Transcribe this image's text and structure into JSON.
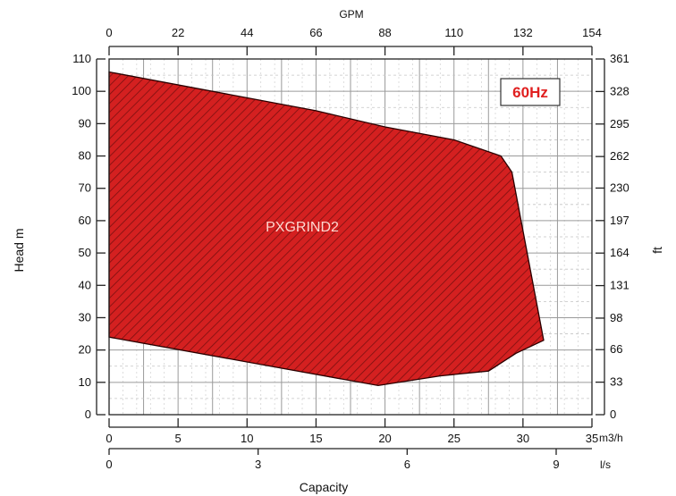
{
  "chart_data": {
    "type": "area",
    "region": {
      "name": "PXGRIND2",
      "color": "#d42020",
      "outline_color": "#2a0000",
      "hatch_color": "#7a1010",
      "points": [
        {
          "x": 0,
          "y": 106
        },
        {
          "x": 15,
          "y": 94
        },
        {
          "x": 20,
          "y": 89
        },
        {
          "x": 25,
          "y": 85
        },
        {
          "x": 28.4,
          "y": 80
        },
        {
          "x": 29.2,
          "y": 75
        },
        {
          "x": 31.5,
          "y": 23
        },
        {
          "x": 29.5,
          "y": 19
        },
        {
          "x": 27.5,
          "y": 13.5
        },
        {
          "x": 24,
          "y": 12
        },
        {
          "x": 19.5,
          "y": 9
        },
        {
          "x": 0,
          "y": 24
        }
      ]
    },
    "badge": "60Hz",
    "badge_color": "#e02020",
    "xlabel": "Capacity",
    "ylabel": "Head m",
    "y2label": "ft",
    "x_top_label": "GPM",
    "x_unit_primary": "m3/h",
    "x_unit_secondary": "l/s",
    "xlim": [
      0,
      35
    ],
    "ylim": [
      0,
      110
    ],
    "grid": true,
    "x_ticks": [
      {
        "value": 0,
        "label": "0"
      },
      {
        "value": 5,
        "label": "5"
      },
      {
        "value": 10,
        "label": "10"
      },
      {
        "value": 15,
        "label": "15"
      },
      {
        "value": 20,
        "label": "20"
      },
      {
        "value": 25,
        "label": "25"
      },
      {
        "value": 30,
        "label": "30"
      },
      {
        "value": 35,
        "label": "35"
      }
    ],
    "y_ticks": [
      {
        "value": 0,
        "label": "0"
      },
      {
        "value": 10,
        "label": "10"
      },
      {
        "value": 20,
        "label": "20"
      },
      {
        "value": 30,
        "label": "30"
      },
      {
        "value": 40,
        "label": "40"
      },
      {
        "value": 50,
        "label": "50"
      },
      {
        "value": 60,
        "label": "60"
      },
      {
        "value": 70,
        "label": "70"
      },
      {
        "value": 80,
        "label": "80"
      },
      {
        "value": 90,
        "label": "90"
      },
      {
        "value": 100,
        "label": "100"
      },
      {
        "value": 110,
        "label": "110"
      }
    ],
    "gpm_ticks": [
      {
        "value": 0,
        "label": "0"
      },
      {
        "value": 22,
        "label": "22"
      },
      {
        "value": 44,
        "label": "44"
      },
      {
        "value": 66,
        "label": "66"
      },
      {
        "value": 88,
        "label": "88"
      },
      {
        "value": 110,
        "label": "110"
      },
      {
        "value": 132,
        "label": "132"
      },
      {
        "value": 154,
        "label": "154"
      }
    ],
    "gpm_lim": [
      0,
      154
    ],
    "ft_ticks": [
      {
        "value": 0,
        "label": "0"
      },
      {
        "value": 33,
        "label": "33"
      },
      {
        "value": 66,
        "label": "66"
      },
      {
        "value": 98,
        "label": "98"
      },
      {
        "value": 131,
        "label": "131"
      },
      {
        "value": 164,
        "label": "164"
      },
      {
        "value": 197,
        "label": "197"
      },
      {
        "value": 230,
        "label": "230"
      },
      {
        "value": 262,
        "label": "262"
      },
      {
        "value": 295,
        "label": "295"
      },
      {
        "value": 328,
        "label": "328"
      },
      {
        "value": 361,
        "label": "361"
      }
    ],
    "ft_lim": [
      0,
      361
    ],
    "ls_ticks": [
      {
        "value": 0,
        "label": "0"
      },
      {
        "value": 3,
        "label": "3"
      },
      {
        "value": 6,
        "label": "6"
      },
      {
        "value": 9,
        "label": "9"
      }
    ],
    "ls_lim": [
      0,
      9.72
    ]
  }
}
